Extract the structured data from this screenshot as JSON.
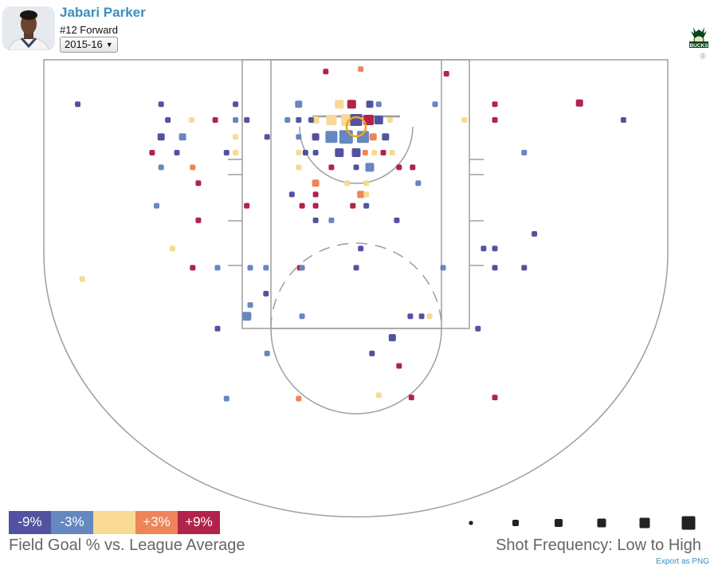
{
  "player": {
    "name": "Jabari Parker",
    "subtitle": "#12 Forward",
    "season": "2015-16"
  },
  "team": {
    "logo_text": "BUCKS",
    "badge": "2"
  },
  "legend": {
    "items": [
      {
        "label": "-9%",
        "color": "#5253a0"
      },
      {
        "label": "-3%",
        "color": "#6488bf"
      },
      {
        "label": "",
        "color": "#f8d995"
      },
      {
        "label": "+3%",
        "color": "#ee8459"
      },
      {
        "label": "+9%",
        "color": "#b2234b"
      }
    ],
    "title": "Field Goal % vs. League Average"
  },
  "frequency": {
    "title": "Shot Frequency: Low to High",
    "sizes": [
      1,
      2,
      3,
      4,
      5,
      6
    ]
  },
  "export_label": "Export as PNG",
  "chart_data": {
    "type": "scatter",
    "description_units": "court feet from basket center (x: left-right, y: toward half court)",
    "color_scale": [
      "-9%",
      "-3%",
      "0%",
      "+3%",
      "+9%"
    ],
    "size_scale": [
      1,
      2,
      3,
      4,
      5,
      6
    ],
    "points": [
      [
        -24.7,
        2.0,
        0,
        1
      ],
      [
        -17.3,
        2.0,
        0,
        1
      ],
      [
        -10.7,
        2.0,
        0,
        1
      ],
      [
        -5.1,
        2.0,
        1,
        2
      ],
      [
        -2.7,
        4.9,
        4,
        1
      ],
      [
        0.4,
        5.1,
        3,
        1
      ],
      [
        -0.4,
        2.0,
        4,
        3
      ],
      [
        -1.5,
        2.0,
        2,
        3
      ],
      [
        1.2,
        2.0,
        0,
        2
      ],
      [
        2.0,
        2.0,
        1,
        1
      ],
      [
        -2.2,
        0.6,
        2,
        4
      ],
      [
        -0.8,
        0.6,
        2,
        5
      ],
      [
        0.0,
        0.6,
        0,
        5
      ],
      [
        1.1,
        0.6,
        4,
        4
      ],
      [
        2.0,
        0.6,
        0,
        3
      ],
      [
        -3.6,
        0.6,
        2,
        2
      ],
      [
        3.0,
        0.6,
        2,
        1
      ],
      [
        -4.0,
        0.6,
        0,
        1
      ],
      [
        -5.1,
        0.6,
        0,
        1
      ],
      [
        -6.1,
        0.6,
        1,
        1
      ],
      [
        -9.7,
        0.6,
        0,
        1
      ],
      [
        -10.7,
        0.6,
        1,
        1
      ],
      [
        -12.5,
        0.6,
        4,
        1
      ],
      [
        -14.6,
        0.6,
        2,
        1
      ],
      [
        -16.7,
        0.6,
        0,
        1
      ],
      [
        7.0,
        2.0,
        1,
        1
      ],
      [
        12.3,
        2.0,
        4,
        1
      ],
      [
        12.3,
        0.6,
        4,
        1
      ],
      [
        9.6,
        0.6,
        2,
        1
      ],
      [
        8.0,
        4.7,
        4,
        1
      ],
      [
        19.8,
        2.1,
        4,
        2
      ],
      [
        23.7,
        0.6,
        0,
        1
      ],
      [
        -3.6,
        -0.9,
        3,
        2
      ],
      [
        -2.2,
        -0.9,
        1,
        5
      ],
      [
        -0.9,
        -0.9,
        1,
        6
      ],
      [
        0.6,
        -0.9,
        1,
        5
      ],
      [
        1.5,
        -0.9,
        3,
        2
      ],
      [
        2.6,
        -0.9,
        0,
        2
      ],
      [
        -17.3,
        -0.9,
        0,
        2
      ],
      [
        -15.4,
        -0.9,
        1,
        2
      ],
      [
        -10.7,
        -0.9,
        2,
        1
      ],
      [
        -7.9,
        -0.9,
        0,
        1
      ],
      [
        -5.1,
        -0.9,
        1,
        1
      ],
      [
        -3.6,
        -0.9,
        0,
        2
      ],
      [
        -1.5,
        -2.3,
        0,
        3
      ],
      [
        0.0,
        -2.3,
        0,
        3
      ],
      [
        0.8,
        -2.3,
        3,
        1
      ],
      [
        1.6,
        -2.3,
        2,
        1
      ],
      [
        2.4,
        -2.3,
        4,
        1
      ],
      [
        3.2,
        -2.3,
        2,
        1
      ],
      [
        -3.6,
        -2.3,
        0,
        1
      ],
      [
        -4.5,
        -2.3,
        0,
        1
      ],
      [
        -5.1,
        -2.3,
        2,
        1
      ],
      [
        -11.5,
        -2.3,
        0,
        1
      ],
      [
        -15.9,
        -2.3,
        0,
        1
      ],
      [
        -18.1,
        -2.3,
        4,
        1
      ],
      [
        -10.7,
        -2.3,
        2,
        1
      ],
      [
        14.9,
        -2.3,
        1,
        1
      ],
      [
        -14.5,
        -3.6,
        3,
        1
      ],
      [
        -17.3,
        -3.6,
        1,
        1
      ],
      [
        -5.1,
        -3.6,
        2,
        1
      ],
      [
        -2.2,
        -3.6,
        4,
        1
      ],
      [
        0.0,
        -3.6,
        0,
        1
      ],
      [
        1.2,
        -3.6,
        1,
        3
      ],
      [
        3.8,
        -3.6,
        4,
        1
      ],
      [
        5.0,
        -3.6,
        4,
        1
      ],
      [
        -14.0,
        -5.0,
        4,
        1
      ],
      [
        -3.6,
        -5.0,
        3,
        2
      ],
      [
        -0.8,
        -5.0,
        2,
        1
      ],
      [
        0.9,
        -5.0,
        2,
        1
      ],
      [
        5.5,
        -5.0,
        1,
        1
      ],
      [
        -3.6,
        -6.0,
        4,
        1
      ],
      [
        0.4,
        -6.0,
        3,
        2
      ],
      [
        0.9,
        -6.0,
        2,
        1
      ],
      [
        -5.7,
        -6.0,
        0,
        1
      ],
      [
        -17.7,
        -7.0,
        1,
        1
      ],
      [
        -4.8,
        -7.0,
        4,
        1
      ],
      [
        -3.6,
        -7.0,
        4,
        1
      ],
      [
        -0.3,
        -7.0,
        4,
        1
      ],
      [
        0.9,
        -7.0,
        0,
        1
      ],
      [
        -9.7,
        -7.0,
        4,
        1
      ],
      [
        -3.6,
        -8.3,
        0,
        1
      ],
      [
        -2.2,
        -8.3,
        1,
        1
      ],
      [
        3.6,
        -8.3,
        0,
        1
      ],
      [
        -14.0,
        -8.3,
        4,
        1
      ],
      [
        -16.3,
        -10.8,
        2,
        1
      ],
      [
        0.4,
        -10.8,
        0,
        1
      ],
      [
        11.3,
        -10.8,
        0,
        1
      ],
      [
        12.3,
        -10.8,
        0,
        1
      ],
      [
        15.8,
        -9.5,
        0,
        1
      ],
      [
        -14.5,
        -12.5,
        4,
        1
      ],
      [
        -12.3,
        -12.5,
        1,
        1
      ],
      [
        -9.4,
        -12.5,
        1,
        1
      ],
      [
        -8.0,
        -12.5,
        1,
        1
      ],
      [
        -5.0,
        -12.5,
        4,
        1
      ],
      [
        0.0,
        -12.5,
        0,
        1
      ],
      [
        7.7,
        -12.5,
        1,
        1
      ],
      [
        12.3,
        -12.5,
        0,
        1
      ],
      [
        14.9,
        -12.5,
        0,
        1
      ],
      [
        -9.4,
        -15.8,
        1,
        1
      ],
      [
        -9.5,
        -16.8,
        2,
        1
      ],
      [
        -12.3,
        -17.9,
        0,
        1
      ],
      [
        -9.7,
        -16.8,
        1,
        3
      ],
      [
        -4.8,
        -16.8,
        1,
        1
      ],
      [
        4.8,
        -16.8,
        0,
        1
      ],
      [
        5.8,
        -16.8,
        0,
        1
      ],
      [
        6.5,
        -16.8,
        2,
        1
      ],
      [
        10.8,
        -17.9,
        0,
        1
      ],
      [
        3.2,
        -18.7,
        0,
        2
      ],
      [
        -7.9,
        -20.1,
        1,
        1
      ],
      [
        1.4,
        -20.1,
        0,
        1
      ],
      [
        3.8,
        -21.2,
        4,
        1
      ],
      [
        -11.5,
        -24.1,
        1,
        1
      ],
      [
        -5.1,
        -24.1,
        3,
        1
      ],
      [
        2.0,
        -23.8,
        2,
        1
      ],
      [
        4.9,
        -24.0,
        4,
        1
      ],
      [
        12.3,
        -24.0,
        4,
        1
      ],
      [
        -24.3,
        -13.5,
        2,
        1
      ],
      [
        -8.0,
        -14.8,
        0,
        1
      ],
      [
        -4.8,
        -12.5,
        1,
        1
      ]
    ]
  }
}
